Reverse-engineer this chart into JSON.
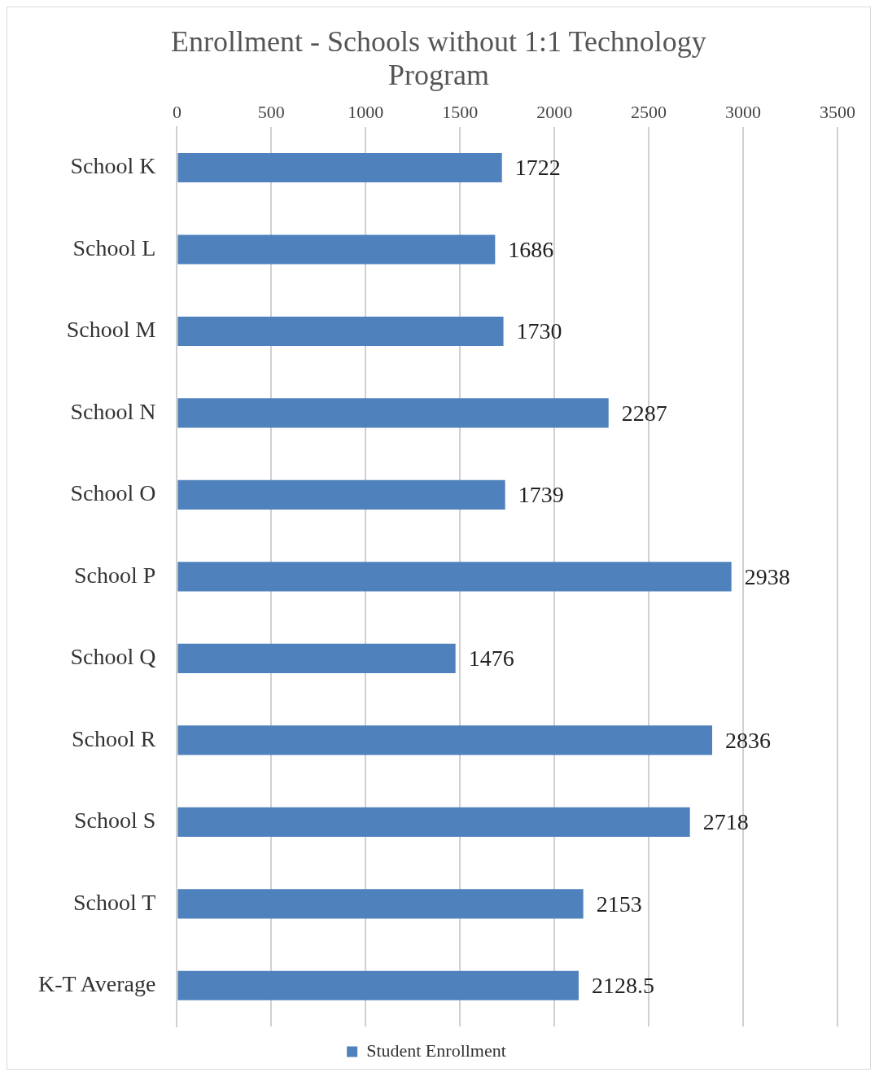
{
  "chart_data": {
    "type": "bar",
    "title": "Enrollment - Schools without 1:1 Technology Program",
    "orientation": "horizontal",
    "categories": [
      "School K",
      "School L",
      "School M",
      "School N",
      "School O",
      "School P",
      "School Q",
      "School R",
      "School S",
      "School T",
      "K-T Average"
    ],
    "series": [
      {
        "name": "Student Enrollment",
        "color": "#4f81bd",
        "values": [
          1722,
          1686,
          1730,
          2287,
          1739,
          2938,
          1476,
          2836,
          2718,
          2153,
          2128.5
        ]
      }
    ],
    "xlim": [
      0,
      3500
    ],
    "xticks": [
      0,
      500,
      1000,
      1500,
      2000,
      2500,
      3000,
      3500
    ],
    "grid": "x",
    "legend": "bottom",
    "data_labels": true
  }
}
